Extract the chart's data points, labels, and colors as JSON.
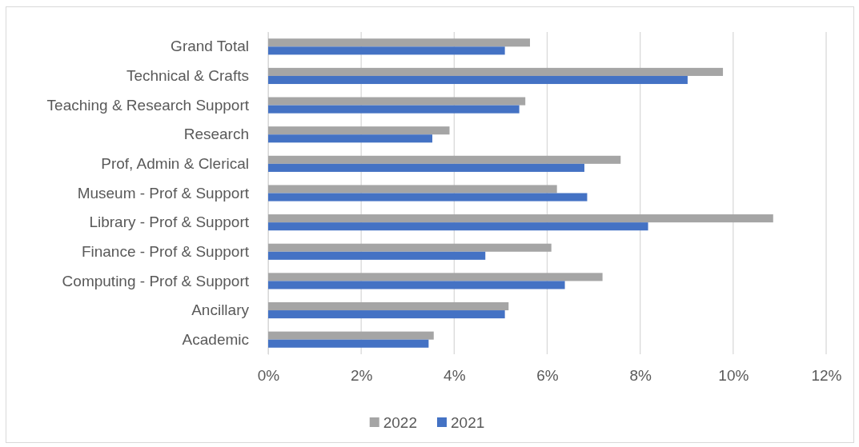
{
  "chart_data": {
    "type": "bar",
    "orientation": "horizontal",
    "categories": [
      "Grand Total",
      "Technical & Crafts",
      "Teaching & Research Support",
      "Research",
      "Prof, Admin & Clerical",
      "Museum - Prof & Support",
      "Library - Prof & Support",
      "Finance - Prof & Support",
      "Computing - Prof & Support",
      "Ancillary",
      "Academic"
    ],
    "series": [
      {
        "name": "2022",
        "color": "#a5a5a5",
        "values": [
          5.63,
          9.78,
          5.53,
          3.9,
          7.58,
          6.21,
          10.86,
          6.09,
          7.19,
          5.17,
          3.56
        ]
      },
      {
        "name": "2021",
        "color": "#4472c4",
        "values": [
          5.09,
          9.02,
          5.4,
          3.53,
          6.8,
          6.86,
          8.17,
          4.67,
          6.38,
          5.09,
          3.45
        ]
      }
    ],
    "xlim": [
      0,
      12
    ],
    "xticks": [
      {
        "value": 0,
        "label": "0%"
      },
      {
        "value": 2,
        "label": "2%"
      },
      {
        "value": 4,
        "label": "4%"
      },
      {
        "value": 6,
        "label": "6%"
      },
      {
        "value": 8,
        "label": "8%"
      },
      {
        "value": 10,
        "label": "10%"
      },
      {
        "value": 12,
        "label": "12%"
      }
    ],
    "grid": "x",
    "legend": "bottom"
  }
}
